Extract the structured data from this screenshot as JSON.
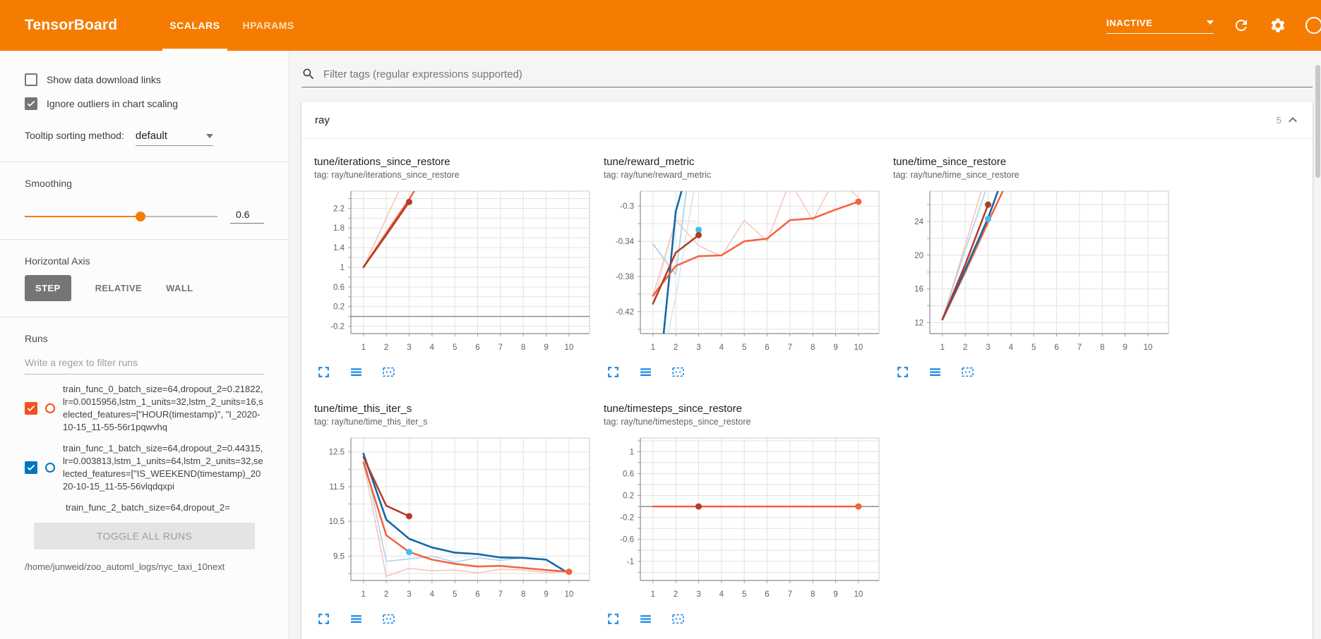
{
  "header": {
    "app_title": "TensorBoard",
    "tabs": [
      {
        "label": "SCALARS",
        "active": true
      },
      {
        "label": "HPARAMS",
        "active": false
      }
    ],
    "status_dropdown": {
      "value": "INACTIVE"
    },
    "icon_names": [
      "refresh-icon",
      "settings-gear-icon",
      "help-icon"
    ]
  },
  "sidebar": {
    "show_download_links": {
      "label": "Show data download links",
      "checked": false
    },
    "ignore_outliers": {
      "label": "Ignore outliers in chart scaling",
      "checked": true
    },
    "tooltip_sorting": {
      "label": "Tooltip sorting method:",
      "value": "default"
    },
    "smoothing": {
      "label": "Smoothing",
      "value": "0.6",
      "fraction": 0.6
    },
    "horizontal_axis": {
      "label": "Horizontal Axis",
      "options": [
        "STEP",
        "RELATIVE",
        "WALL"
      ],
      "selected": "STEP"
    },
    "runs": {
      "label": "Runs",
      "filter_placeholder": "Write a regex to filter runs",
      "items": [
        {
          "label": "train_func_0_batch_size=64,dropout_2=0.21822,lr=0.0015956,lstm_1_units=32,lstm_2_units=16,selected_features=[\"HOUR(timestamp)\", \"I_2020-10-15_11-55-56r1pqwvhq",
          "color": "#f4511e",
          "checked": true,
          "clipped": false
        },
        {
          "label": "train_func_1_batch_size=64,dropout_2=0.44315,lr=0.003813,lstm_1_units=64,lstm_2_units=32,selected_features=[\"IS_WEEKEND(timestamp)_2020-10-15_11-55-56vlqdqxpi",
          "color": "#0277bd",
          "checked": true,
          "clipped": false
        },
        {
          "label": "train_func_2_batch_size=64,dropout_2=",
          "color": "#b23c26",
          "checked": true,
          "clipped": true
        }
      ],
      "toggle_all_label": "TOGGLE ALL RUNS",
      "log_path": "/home/junweid/zoo_automl_logs/nyc_taxi_10next"
    }
  },
  "main": {
    "filter_placeholder": "Filter tags (regular expressions supported)",
    "section": {
      "title": "ray",
      "chart_count": "5"
    },
    "chart_actions": [
      "expand-chart-icon",
      "toggle-size-icon",
      "pin-chart-icon"
    ]
  },
  "colors": {
    "header_orange": "#f57c00",
    "icon_blue": "#1e88e5",
    "run_0": "#b23c26",
    "run_1": "#1468a8",
    "run_2": "#f4613c",
    "unsmoothed_pink": "#f5c6b8",
    "unsmoothed_lightblue": "#a9d4ed",
    "cyan_marker": "#3fbdf0"
  },
  "chart_data": [
    {
      "type": "line",
      "title": "tune/iterations_since_restore",
      "tag": "tag: ray/tune/iterations_since_restore",
      "x_ticks": [
        1,
        2,
        3,
        4,
        5,
        6,
        7,
        8,
        9,
        10
      ],
      "xlim": [
        0.45,
        10.9
      ],
      "ylim": [
        -0.35,
        2.55
      ],
      "grid_step": 0.2,
      "zero_line": true,
      "y_labels": [
        {
          "v": 2.2,
          "t": "2.2"
        },
        {
          "v": 1.8,
          "t": "1.8"
        },
        {
          "v": 1.4,
          "t": "1.4"
        },
        {
          "v": 1,
          "t": "1"
        },
        {
          "v": 0.6,
          "t": "0.6"
        },
        {
          "v": 0.2,
          "t": "0.2"
        },
        {
          "v": -0.2,
          "t": "-0.2"
        }
      ],
      "series": [
        {
          "name": "train_func_0-unsmoothed",
          "color": "#f5c6b8",
          "w": 1.6,
          "pts": [
            [
              1,
              1
            ],
            [
              2,
              2
            ],
            [
              3,
              3
            ]
          ]
        },
        {
          "name": "train_func_2-smoothed",
          "color": "#f4613c",
          "w": 2.5,
          "pts": [
            [
              1,
              1
            ],
            [
              2,
              1.7
            ],
            [
              3,
              2.38
            ],
            [
              3.6,
              2.85
            ]
          ]
        },
        {
          "name": "train_func_0-smoothed",
          "color": "#b23c26",
          "w": 2.5,
          "pts": [
            [
              1,
              1
            ],
            [
              2,
              1.66
            ],
            [
              3,
              2.33
            ]
          ]
        }
      ],
      "dots": [
        {
          "x": 3,
          "y": 2.33,
          "color": "#b23c26"
        }
      ]
    },
    {
      "type": "line",
      "title": "tune/reward_metric",
      "tag": "tag: ray/tune/reward_metric",
      "x_ticks": [
        1,
        2,
        3,
        4,
        5,
        6,
        7,
        8,
        9,
        10
      ],
      "xlim": [
        0.45,
        10.9
      ],
      "ylim": [
        -0.445,
        -0.283
      ],
      "grid_step": 0.02,
      "zero_line": false,
      "y_labels": [
        {
          "v": -0.3,
          "t": "-0.3"
        },
        {
          "v": -0.34,
          "t": "-0.34"
        },
        {
          "v": -0.38,
          "t": "-0.38"
        },
        {
          "v": -0.42,
          "t": "-0.42"
        }
      ],
      "series": [
        {
          "name": "train_func_0-unsmoothed",
          "color": "#fadfd7",
          "w": 1.5,
          "pts": [
            [
              1,
              -0.411
            ],
            [
              2,
              -0.316
            ],
            [
              3,
              -0.318
            ]
          ]
        },
        {
          "name": "train_func_2-unsmoothed",
          "color": "#f5c6b8",
          "w": 1.5,
          "pts": [
            [
              1,
              -0.402
            ],
            [
              2,
              -0.316
            ],
            [
              3,
              -0.345
            ],
            [
              4,
              -0.357
            ],
            [
              5,
              -0.316
            ],
            [
              6,
              -0.34
            ],
            [
              7,
              -0.272
            ],
            [
              8,
              -0.316
            ],
            [
              9,
              -0.268
            ],
            [
              10,
              -0.29
            ]
          ]
        },
        {
          "name": "train_func_1-unsmoothed-a",
          "color": "#cfe7f5",
          "w": 1.5,
          "pts": [
            [
              1.62,
              -0.45
            ],
            [
              2.05,
              -0.396
            ],
            [
              2.9,
              -0.265
            ]
          ]
        },
        {
          "name": "train_func_1-unsmoothed-b",
          "color": "#a9d4ed",
          "w": 1.8,
          "pts": [
            [
              1,
              -0.343
            ],
            [
              2,
              -0.378
            ],
            [
              2.55,
              -0.265
            ]
          ]
        },
        {
          "name": "train_func_1-smoothed",
          "color": "#1468a8",
          "w": 2.6,
          "pts": [
            [
              1.45,
              -0.45
            ],
            [
              2,
              -0.306
            ],
            [
              2.45,
              -0.265
            ]
          ]
        },
        {
          "name": "train_func_2-smoothed",
          "color": "#f4613c",
          "w": 2.5,
          "pts": [
            [
              1,
              -0.402
            ],
            [
              2,
              -0.368
            ],
            [
              3,
              -0.357
            ],
            [
              4,
              -0.356
            ],
            [
              5,
              -0.34
            ],
            [
              6,
              -0.337
            ],
            [
              7,
              -0.316
            ],
            [
              8,
              -0.314
            ],
            [
              9,
              -0.304
            ],
            [
              10,
              -0.295
            ]
          ]
        },
        {
          "name": "train_func_0-smoothed",
          "color": "#b23c26",
          "w": 2.5,
          "pts": [
            [
              1,
              -0.411
            ],
            [
              2,
              -0.353
            ],
            [
              3,
              -0.333
            ]
          ]
        }
      ],
      "dots": [
        {
          "x": 3,
          "y": -0.327,
          "color": "#3fbdf0"
        },
        {
          "x": 3,
          "y": -0.333,
          "color": "#b23c26"
        },
        {
          "x": 10,
          "y": -0.295,
          "color": "#f4613c"
        }
      ]
    },
    {
      "type": "line",
      "title": "tune/time_since_restore",
      "tag": "tag: ray/tune/time_since_restore",
      "x_ticks": [
        1,
        2,
        3,
        4,
        5,
        6,
        7,
        8,
        9,
        10
      ],
      "xlim": [
        0.45,
        10.9
      ],
      "ylim": [
        10.7,
        27.6
      ],
      "grid_step": 2,
      "zero_line": false,
      "y_labels": [
        {
          "v": 24,
          "t": "24"
        },
        {
          "v": 20,
          "t": "20"
        },
        {
          "v": 16,
          "t": "16"
        },
        {
          "v": 12,
          "t": "12"
        }
      ],
      "series": [
        {
          "name": "train_func_0-unsmoothed",
          "color": "#f5c6b8",
          "w": 1.6,
          "pts": [
            [
              1,
              12.3
            ],
            [
              2,
              21.2
            ],
            [
              2.8,
              28.5
            ]
          ]
        },
        {
          "name": "train_func_1-unsmoothed",
          "color": "#a9d4ed",
          "w": 1.6,
          "pts": [
            [
              1,
              12.45
            ],
            [
              2,
              20.6
            ],
            [
              3,
              28.5
            ]
          ]
        },
        {
          "name": "train_func_2-smoothed",
          "color": "#f4613c",
          "w": 2.5,
          "pts": [
            [
              1,
              12.35
            ],
            [
              2,
              18.0
            ],
            [
              3,
              23.9
            ],
            [
              3.8,
              28.5
            ]
          ]
        },
        {
          "name": "train_func_1-smoothed",
          "color": "#1468a8",
          "w": 2.6,
          "pts": [
            [
              1,
              12.4
            ],
            [
              2,
              18.3
            ],
            [
              3,
              24.4
            ],
            [
              3.55,
              28.5
            ]
          ]
        },
        {
          "name": "train_func_0-smoothed",
          "color": "#b23c26",
          "w": 2.5,
          "pts": [
            [
              1,
              12.4
            ],
            [
              2,
              18.9
            ],
            [
              3,
              26.0
            ]
          ]
        }
      ],
      "dots": [
        {
          "x": 3,
          "y": 26.0,
          "color": "#b23c26"
        },
        {
          "x": 3,
          "y": 24.3,
          "color": "#3fbdf0"
        }
      ]
    },
    {
      "type": "line",
      "title": "tune/time_this_iter_s",
      "tag": "tag: ray/tune/time_this_iter_s",
      "x_ticks": [
        1,
        2,
        3,
        4,
        5,
        6,
        7,
        8,
        9,
        10
      ],
      "xlim": [
        0.45,
        10.9
      ],
      "ylim": [
        8.8,
        12.9
      ],
      "grid_step": 0.5,
      "zero_line": false,
      "y_labels": [
        {
          "v": 12.5,
          "t": "12.5"
        },
        {
          "v": 11.5,
          "t": "11.5"
        },
        {
          "v": 10.5,
          "t": "10.5"
        },
        {
          "v": 9.5,
          "t": "9.5"
        }
      ],
      "series": [
        {
          "name": "train_func_1-unsmoothed",
          "color": "#a9d4ed",
          "w": 1.6,
          "pts": [
            [
              1,
              12.45
            ],
            [
              2,
              9.35
            ],
            [
              3,
              9.42
            ],
            [
              4,
              9.5
            ],
            [
              5,
              9.33
            ],
            [
              6,
              9.45
            ],
            [
              7,
              9.38
            ],
            [
              8,
              9.45
            ],
            [
              9,
              9.4
            ],
            [
              10,
              8.98
            ]
          ]
        },
        {
          "name": "train_func_2-unsmoothed",
          "color": "#f5c6b8",
          "w": 1.6,
          "pts": [
            [
              1,
              12.2
            ],
            [
              2,
              8.92
            ],
            [
              3,
              9.15
            ],
            [
              4,
              9.08
            ],
            [
              5,
              9.1
            ],
            [
              6,
              9.02
            ],
            [
              7,
              9.12
            ],
            [
              8,
              9.1
            ],
            [
              9,
              9.03
            ],
            [
              10,
              9.05
            ]
          ]
        },
        {
          "name": "train_func_1-smoothed",
          "color": "#1468a8",
          "w": 2.6,
          "pts": [
            [
              1,
              12.45
            ],
            [
              2,
              10.55
            ],
            [
              3,
              10.0
            ],
            [
              4,
              9.75
            ],
            [
              5,
              9.6
            ],
            [
              6,
              9.56
            ],
            [
              7,
              9.46
            ],
            [
              8,
              9.45
            ],
            [
              9,
              9.4
            ],
            [
              10,
              9.0
            ]
          ]
        },
        {
          "name": "train_func_2-smoothed",
          "color": "#f4613c",
          "w": 2.5,
          "pts": [
            [
              1,
              12.2
            ],
            [
              2,
              10.1
            ],
            [
              3,
              9.62
            ],
            [
              4,
              9.4
            ],
            [
              5,
              9.28
            ],
            [
              6,
              9.2
            ],
            [
              7,
              9.22
            ],
            [
              8,
              9.16
            ],
            [
              9,
              9.1
            ],
            [
              10,
              9.05
            ]
          ]
        },
        {
          "name": "train_func_0-smoothed",
          "color": "#b23c26",
          "w": 2.5,
          "pts": [
            [
              1,
              12.35
            ],
            [
              2,
              10.95
            ],
            [
              3,
              10.65
            ]
          ]
        }
      ],
      "dots": [
        {
          "x": 3,
          "y": 10.65,
          "color": "#b23c26"
        },
        {
          "x": 3,
          "y": 9.62,
          "color": "#3fbdf0"
        },
        {
          "x": 10,
          "y": 9.05,
          "color": "#f4613c"
        }
      ]
    },
    {
      "type": "line",
      "title": "tune/timesteps_since_restore",
      "tag": "tag: ray/tune/timesteps_since_restore",
      "x_ticks": [
        1,
        2,
        3,
        4,
        5,
        6,
        7,
        8,
        9,
        10
      ],
      "xlim": [
        0.45,
        10.9
      ],
      "ylim": [
        -1.35,
        1.25
      ],
      "grid_step": 0.2,
      "zero_line": true,
      "y_labels": [
        {
          "v": 1,
          "t": "1"
        },
        {
          "v": 0.6,
          "t": "0.6"
        },
        {
          "v": 0.2,
          "t": "0.2"
        },
        {
          "v": -0.2,
          "t": "-0.2"
        },
        {
          "v": -0.6,
          "t": "-0.6"
        },
        {
          "v": -1,
          "t": "-1"
        }
      ],
      "series": [
        {
          "name": "train_func_2-smoothed",
          "color": "#f4613c",
          "w": 2.5,
          "pts": [
            [
              1,
              0
            ],
            [
              10,
              0
            ]
          ]
        }
      ],
      "dots": [
        {
          "x": 3,
          "y": 0,
          "color": "#b23c26"
        },
        {
          "x": 10,
          "y": 0,
          "color": "#f4613c"
        }
      ]
    }
  ]
}
